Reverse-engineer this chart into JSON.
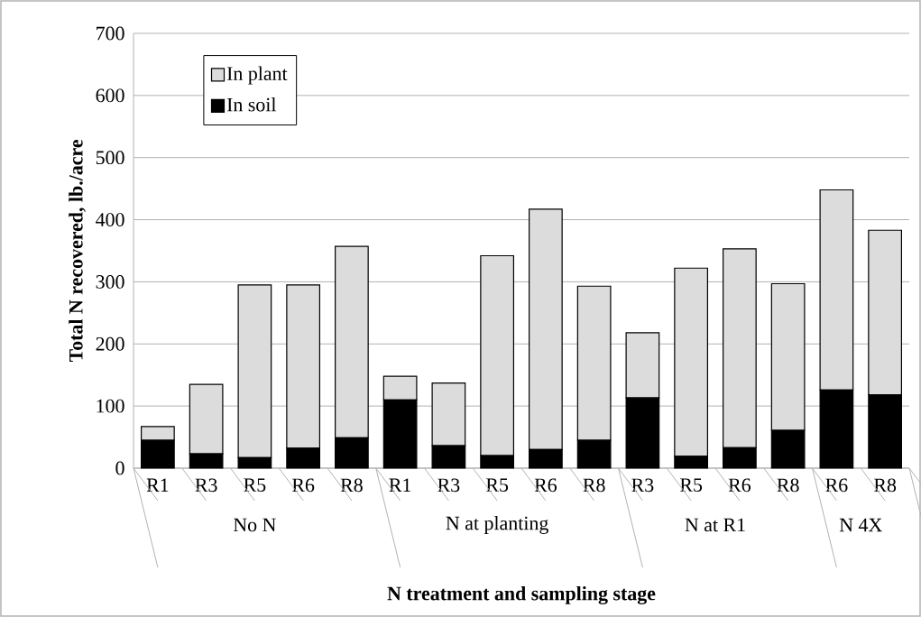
{
  "chart_data": {
    "type": "bar",
    "stacked": true,
    "xlabel": "N treatment and sampling stage",
    "ylabel": "Total N recovered, lb./acre",
    "categories": [
      "R1",
      "R3",
      "R5",
      "R6",
      "R8",
      "R1",
      "R3",
      "R5",
      "R6",
      "R8",
      "R3",
      "R5",
      "R6",
      "R8",
      "R6",
      "R8"
    ],
    "series": [
      {
        "name": "In soil",
        "color": "#000000",
        "values": [
          45,
          23,
          17,
          32,
          49,
          110,
          36,
          20,
          30,
          45,
          113,
          19,
          33,
          61,
          126,
          118
        ]
      },
      {
        "name": "In plant",
        "color": "#dcdcdc",
        "values": [
          22,
          112,
          278,
          263,
          308,
          38,
          101,
          322,
          387,
          248,
          105,
          303,
          320,
          236,
          322,
          265
        ]
      }
    ],
    "annotations": [
      "No N",
      "N at planting",
      "N at R1",
      "N 4X"
    ],
    "ylim": [
      0,
      700
    ],
    "yticks": [
      0,
      100,
      200,
      300,
      400,
      500,
      600,
      700
    ],
    "grid": "y",
    "legend": "top left"
  }
}
